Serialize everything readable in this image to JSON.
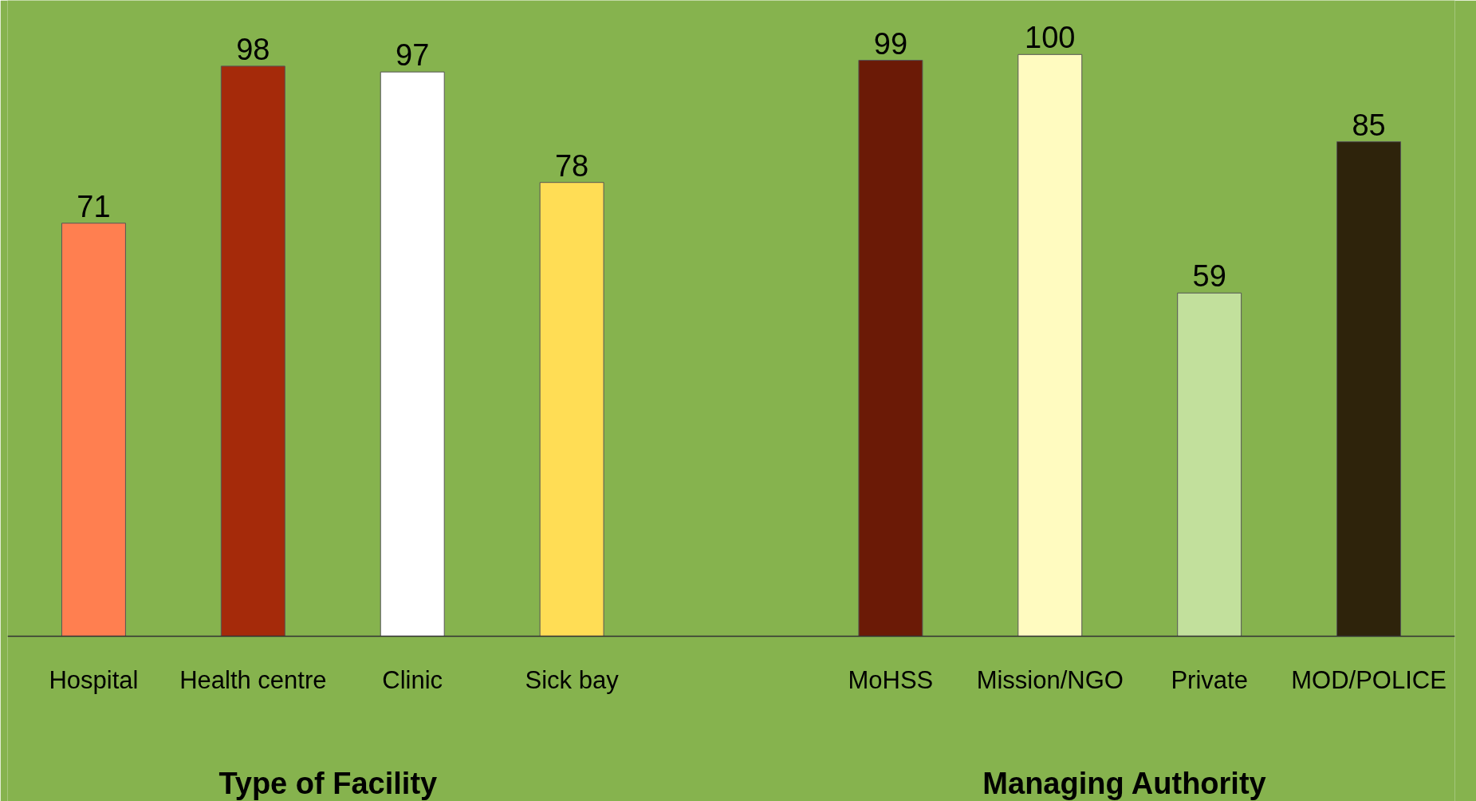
{
  "chart_data": {
    "type": "bar",
    "categories": [
      "Hospital",
      "Health centre",
      "Clinic",
      "Sick bay",
      null,
      "MoHSS",
      "Mission/NGO",
      "Private",
      "MOD/POLICE"
    ],
    "values": [
      71,
      98,
      97,
      78,
      null,
      99,
      100,
      59,
      85
    ],
    "colors": [
      "#ff7f50",
      "#a52a0a",
      "#ffffff",
      "#ffdd55",
      "#000000",
      "#6b1a06",
      "#fffbc0",
      "#c2e09c",
      "#2e230b"
    ],
    "data_labels": true,
    "grid": false,
    "annotations": [
      "Type of Facility",
      "Managing Authority"
    ]
  }
}
